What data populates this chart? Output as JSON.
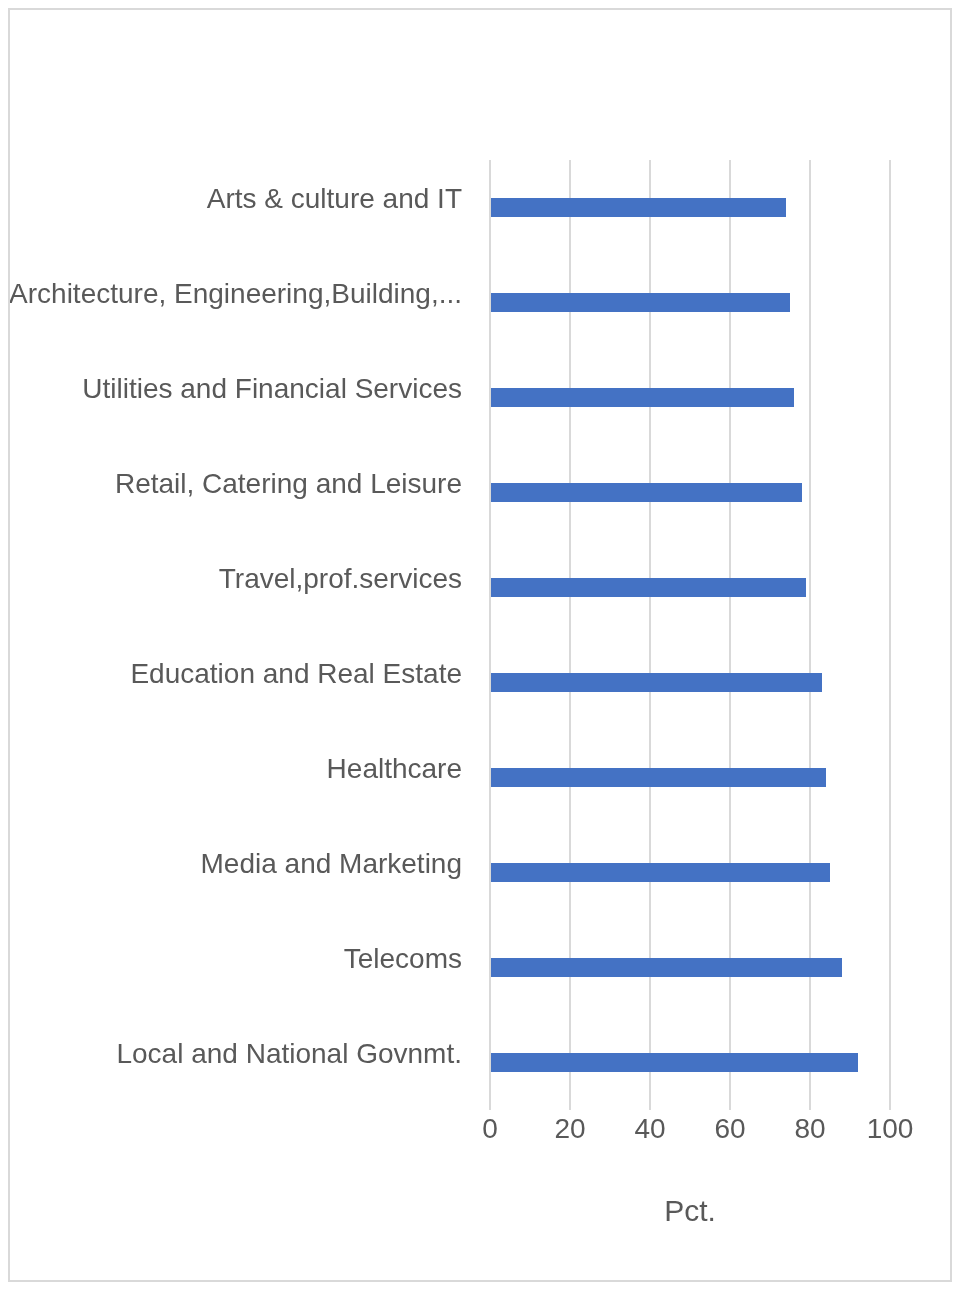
{
  "chart_data": {
    "type": "bar",
    "orientation": "horizontal",
    "xlabel": "Pct.",
    "categories": [
      "Arts & culture and IT",
      "Architecture, Engineering,Building,...",
      "Utilities and Financial Services",
      "Retail, Catering and Leisure",
      "Travel,prof.services",
      "Education and Real Estate",
      "Healthcare",
      "Media and Marketing",
      "Telecoms",
      "Local and National Govnmt."
    ],
    "values": [
      74,
      75,
      76,
      78,
      79,
      83,
      84,
      85,
      88,
      92
    ],
    "color": "#4472c4",
    "xlim": [
      0,
      100
    ],
    "xticks": [
      0,
      20,
      40,
      60,
      80,
      100
    ],
    "grid": "x"
  }
}
